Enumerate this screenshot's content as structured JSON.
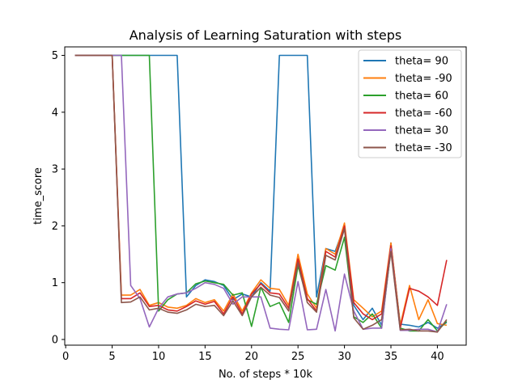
{
  "chart_data": {
    "type": "line",
    "title": "Analysis of Learning Saturation with steps",
    "xlabel": "No. of steps * 10k",
    "ylabel": "time_score",
    "xlim": [
      -0.1,
      43.1
    ],
    "ylim": [
      -0.1,
      5.15
    ],
    "xticks": [
      0,
      5,
      10,
      15,
      20,
      25,
      30,
      35,
      40
    ],
    "yticks": [
      0,
      1,
      2,
      3,
      4,
      5
    ],
    "grid": false,
    "legend_position": "top-right",
    "x": [
      1,
      2,
      3,
      4,
      5,
      6,
      7,
      8,
      9,
      10,
      11,
      12,
      13,
      14,
      15,
      16,
      17,
      18,
      19,
      20,
      21,
      22,
      23,
      24,
      25,
      26,
      27,
      28,
      29,
      30,
      31,
      32,
      33,
      34,
      35,
      36,
      37,
      38,
      39,
      40,
      41
    ],
    "series": [
      {
        "name": "theta= 90",
        "color": "#1f77b4",
        "values": [
          5,
          5,
          5,
          5,
          5,
          5,
          5,
          5,
          5,
          5,
          5,
          5,
          0.75,
          0.95,
          1.05,
          1.02,
          0.95,
          0.7,
          0.8,
          0.75,
          1.0,
          0.85,
          5,
          5,
          5,
          5,
          0.75,
          1.6,
          1.55,
          2.0,
          0.6,
          0.35,
          0.55,
          0.25,
          1.7,
          0.27,
          0.25,
          0.22,
          0.3,
          0.2,
          0.3
        ]
      },
      {
        "name": "theta= -90",
        "color": "#ff7f0e",
        "values": [
          5,
          5,
          5,
          5,
          5,
          0.78,
          0.78,
          0.88,
          0.6,
          0.65,
          0.57,
          0.55,
          0.6,
          0.72,
          0.65,
          0.7,
          0.5,
          0.8,
          0.5,
          0.82,
          1.05,
          0.9,
          0.88,
          0.6,
          1.5,
          0.8,
          0.55,
          1.6,
          1.5,
          2.05,
          0.7,
          0.55,
          0.4,
          0.5,
          1.7,
          0.25,
          0.95,
          0.35,
          0.7,
          0.28,
          0.25
        ]
      },
      {
        "name": "theta= 60",
        "color": "#2ca02c",
        "values": [
          5,
          5,
          5,
          5,
          5,
          5,
          5,
          5,
          5,
          0.5,
          0.7,
          0.8,
          0.82,
          0.98,
          1.03,
          1.0,
          0.97,
          0.78,
          0.82,
          0.23,
          0.92,
          0.58,
          0.65,
          0.3,
          1.3,
          0.7,
          0.62,
          1.3,
          1.22,
          1.8,
          0.4,
          0.3,
          0.45,
          0.2,
          1.6,
          0.2,
          0.15,
          0.15,
          0.35,
          0.15,
          0.32
        ]
      },
      {
        "name": "theta= -60",
        "color": "#d62728",
        "values": [
          5,
          5,
          5,
          5,
          5,
          0.72,
          0.72,
          0.82,
          0.58,
          0.6,
          0.52,
          0.5,
          0.58,
          0.68,
          0.62,
          0.67,
          0.45,
          0.75,
          0.45,
          0.8,
          0.98,
          0.82,
          0.8,
          0.55,
          1.42,
          0.72,
          0.5,
          1.55,
          1.45,
          2.0,
          0.65,
          0.45,
          0.35,
          0.45,
          1.65,
          0.2,
          0.9,
          0.85,
          0.75,
          0.6,
          1.4
        ]
      },
      {
        "name": "theta= 30",
        "color": "#9467bd",
        "values": [
          5,
          5,
          5,
          5,
          5,
          5,
          0.95,
          0.72,
          0.22,
          0.55,
          0.75,
          0.8,
          0.82,
          0.9,
          1.0,
          0.97,
          0.9,
          0.62,
          0.75,
          0.75,
          0.75,
          0.2,
          0.18,
          0.17,
          1.02,
          0.17,
          0.18,
          0.88,
          0.15,
          1.15,
          0.5,
          0.18,
          0.2,
          0.2,
          1.6,
          0.16,
          0.16,
          0.18,
          0.18,
          0.13,
          0.62
        ]
      },
      {
        "name": "theta= -30",
        "color": "#8c564b",
        "values": [
          5,
          5,
          5,
          5,
          5,
          0.65,
          0.66,
          0.75,
          0.52,
          0.55,
          0.48,
          0.46,
          0.52,
          0.62,
          0.58,
          0.6,
          0.42,
          0.68,
          0.42,
          0.75,
          0.92,
          0.78,
          0.74,
          0.5,
          1.35,
          0.65,
          0.48,
          1.48,
          1.4,
          1.95,
          0.38,
          0.18,
          0.25,
          0.35,
          1.55,
          0.17,
          0.18,
          0.15,
          0.15,
          0.13,
          0.35
        ]
      }
    ]
  }
}
